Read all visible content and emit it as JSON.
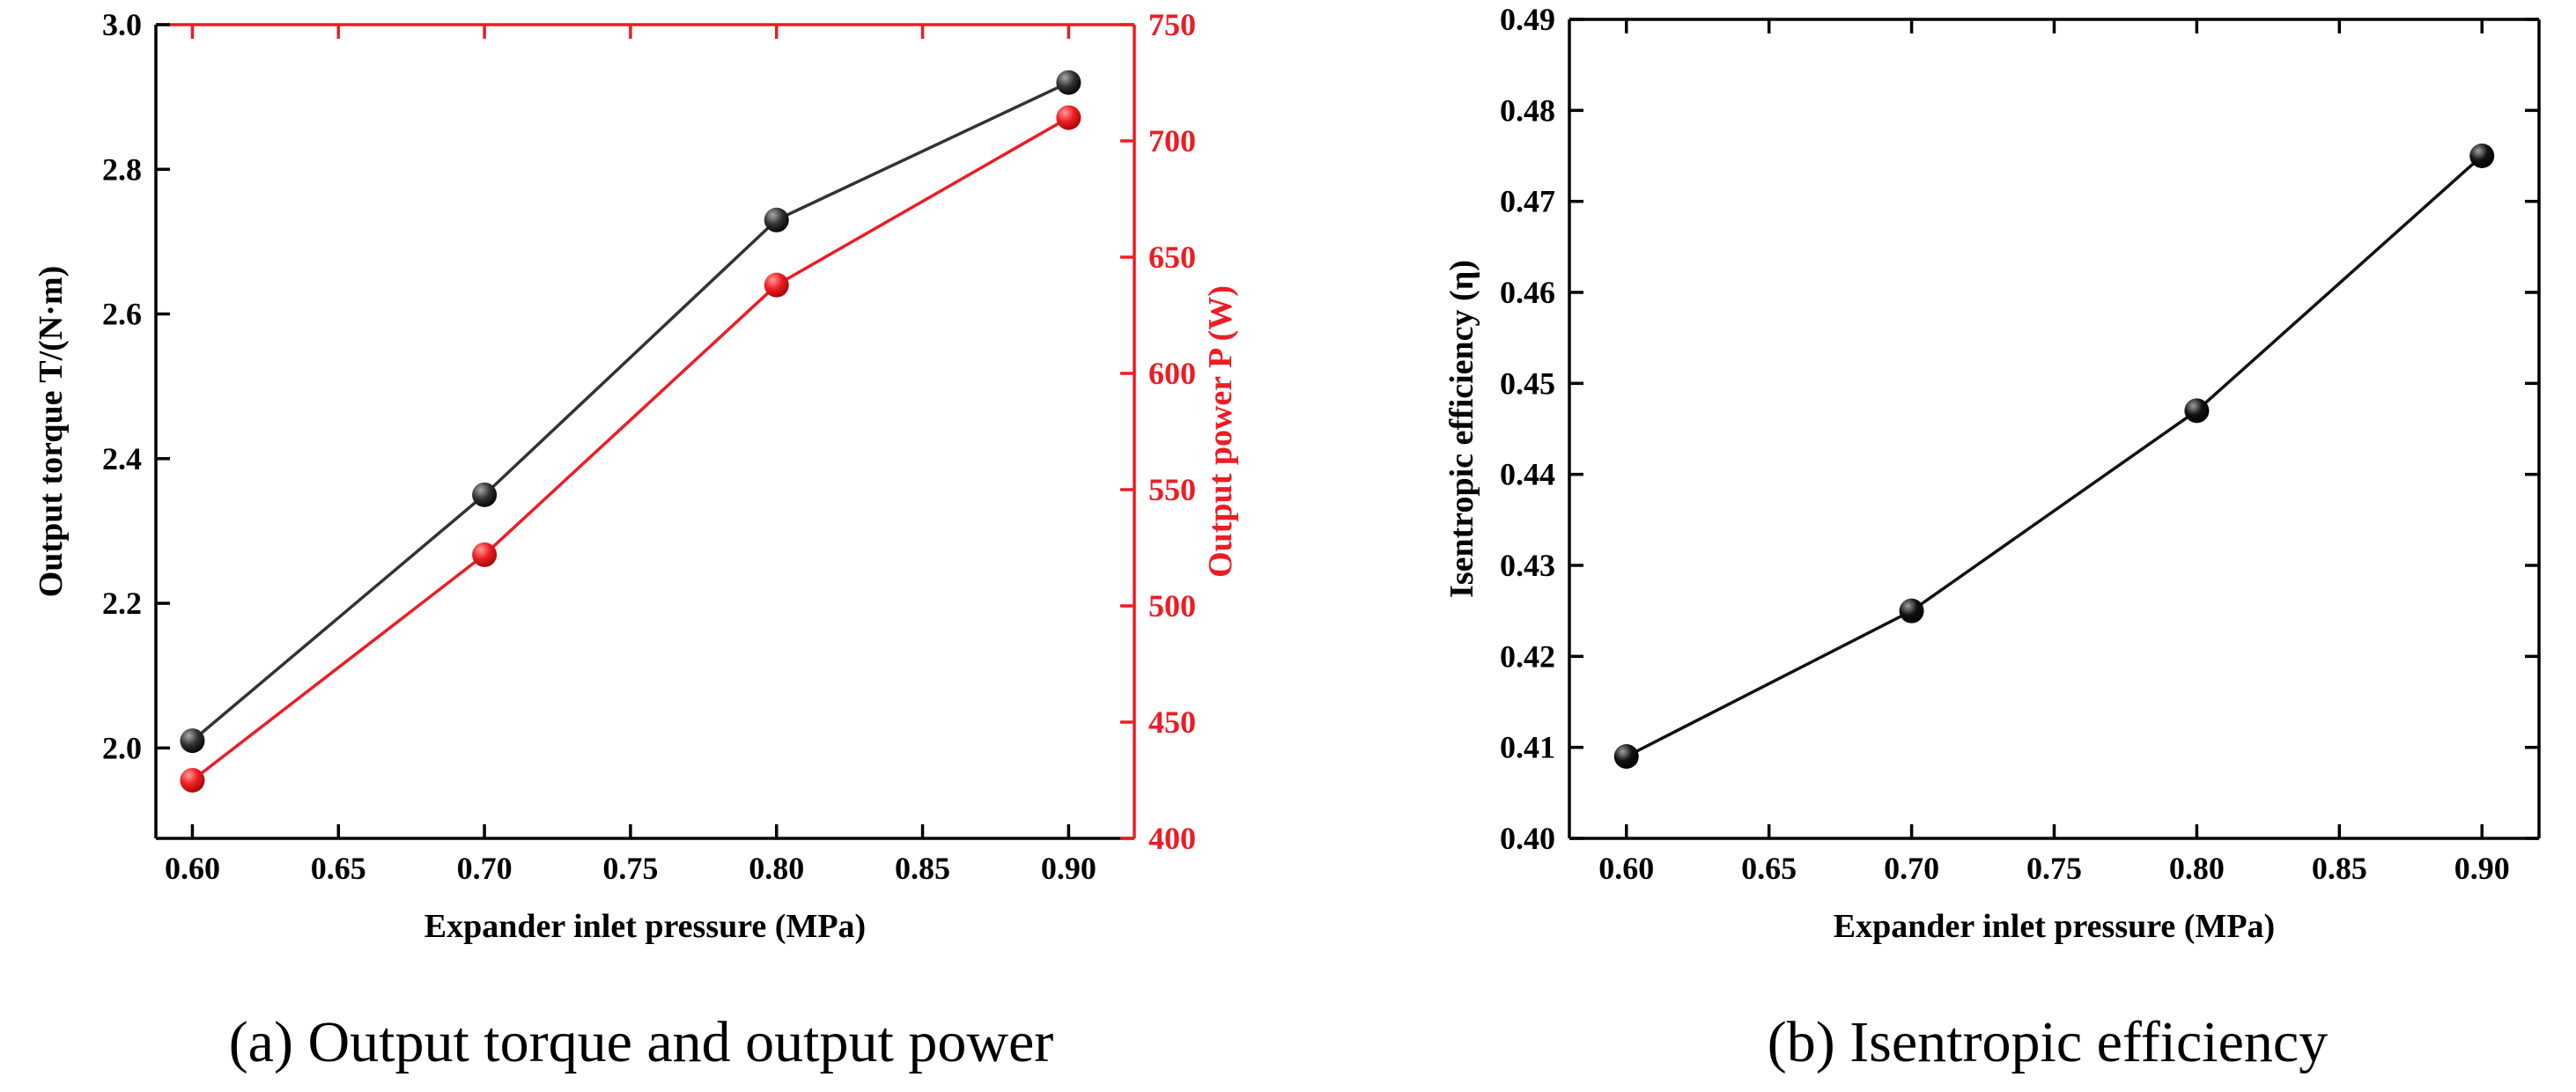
{
  "captions": {
    "a": "(a) Output torque and output power",
    "b": "(b) Isentropic efficiency"
  },
  "chart_data": [
    {
      "id": "a",
      "type": "line",
      "title": "(a) Output torque and output power",
      "xlabel": "Expander inlet pressure (MPa)",
      "xlim": [
        0.5875,
        0.9225
      ],
      "xtick_values": [
        0.6,
        0.65,
        0.7,
        0.75,
        0.8,
        0.85,
        0.9
      ],
      "xtick_labels": [
        "0.60",
        "0.65",
        "0.70",
        "0.75",
        "0.80",
        "0.85",
        "0.90"
      ],
      "grid": false,
      "legend": "none",
      "spines": {
        "top": "#ed1c24",
        "right": "#ed1c24",
        "bottom": "#000000",
        "left": "#000000"
      },
      "axes": {
        "left": {
          "label": "Output torque T/(N·m)",
          "lim": [
            1.875,
            3.0
          ],
          "tick_values": [
            2.0,
            2.2,
            2.4,
            2.6,
            2.8,
            3.0
          ],
          "tick_labels": [
            "2.0",
            "2.2",
            "2.4",
            "2.6",
            "2.8",
            "3.0"
          ],
          "color": "#000000"
        },
        "right": {
          "label": "Output power P (W)",
          "lim": [
            400,
            750
          ],
          "tick_values": [
            400,
            450,
            500,
            550,
            600,
            650,
            700,
            750
          ],
          "tick_labels": [
            "400",
            "450",
            "500",
            "550",
            "600",
            "650",
            "700",
            "750"
          ],
          "color": "#ed1c24"
        }
      },
      "series": [
        {
          "id": "output-torque",
          "name": "Output torque T",
          "yaxis": "left",
          "color": "#333333",
          "marker": {
            "light": "#aaaaaa",
            "dark": "#000000"
          },
          "x": [
            0.6,
            0.7,
            0.8,
            0.9
          ],
          "y": [
            2.01,
            2.35,
            2.73,
            2.92
          ]
        },
        {
          "id": "output-power",
          "name": "Output power P",
          "yaxis": "right",
          "color": "#ed1c24",
          "marker": {
            "light": "#ff9d94",
            "dark": "#9e0a04"
          },
          "x": [
            0.6,
            0.7,
            0.8,
            0.9
          ],
          "y": [
            425,
            522,
            638,
            710
          ]
        }
      ]
    },
    {
      "id": "b",
      "type": "line",
      "title": "(b) Isentropic efficiency",
      "xlabel": "Expander inlet pressure (MPa)",
      "xlim": [
        0.58,
        0.92
      ],
      "xtick_values": [
        0.6,
        0.65,
        0.7,
        0.75,
        0.8,
        0.85,
        0.9
      ],
      "xtick_labels": [
        "0.60",
        "0.65",
        "0.70",
        "0.75",
        "0.80",
        "0.85",
        "0.90"
      ],
      "grid": false,
      "legend": "none",
      "spines": {
        "top": "#000000",
        "right": "#000000",
        "bottom": "#000000",
        "left": "#000000"
      },
      "axes": {
        "left": {
          "label": "Isentropic efficiency (η)",
          "lim": [
            0.4,
            0.49
          ],
          "tick_values": [
            0.4,
            0.41,
            0.42,
            0.43,
            0.44,
            0.45,
            0.46,
            0.47,
            0.48,
            0.49
          ],
          "tick_labels": [
            "0.40",
            "0.41",
            "0.42",
            "0.43",
            "0.44",
            "0.45",
            "0.46",
            "0.47",
            "0.48",
            "0.49"
          ],
          "color": "#000000"
        }
      },
      "series": [
        {
          "id": "isentropic-efficiency",
          "name": "Isentropic efficiency",
          "yaxis": "left",
          "color": "#111111",
          "marker": {
            "light": "#a0a0a0",
            "dark": "#000000"
          },
          "x": [
            0.6,
            0.7,
            0.8,
            0.9
          ],
          "y": [
            0.409,
            0.425,
            0.447,
            0.475
          ]
        }
      ]
    }
  ]
}
